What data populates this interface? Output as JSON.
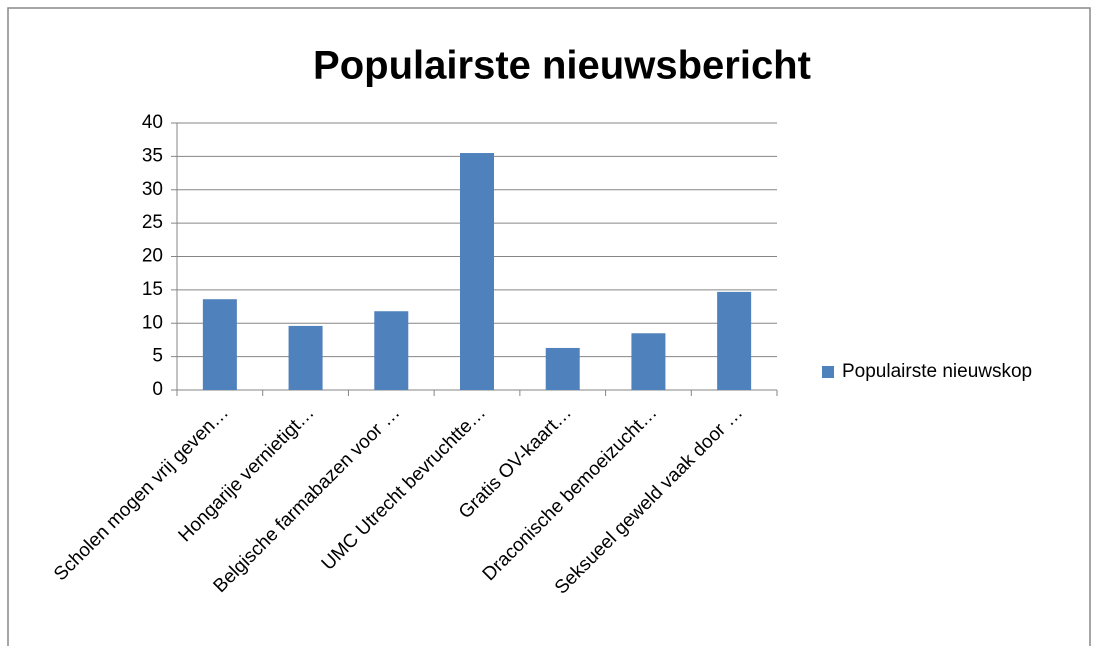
{
  "chart_data": {
    "type": "bar",
    "title": "Populairste nieuwsbericht",
    "categories": [
      "Scholen mogen vrij geven…",
      "Hongarije vernietigt…",
      "Belgische farmabazen voor …",
      "UMC Utrecht bevruchtte…",
      "Gratis OV-kaart…",
      "Draconische bemoeizucht…",
      "Seksueel geweld vaak door …"
    ],
    "series": [
      {
        "name": "Populairste nieuwskop",
        "color": "#4f81bd",
        "values": [
          13.6,
          9.6,
          11.8,
          35.5,
          6.3,
          8.5,
          14.7
        ]
      }
    ],
    "ylim": [
      0,
      40
    ],
    "yticks": [
      0,
      5,
      10,
      15,
      20,
      25,
      30,
      35,
      40
    ],
    "grid": true,
    "legend": "right"
  }
}
